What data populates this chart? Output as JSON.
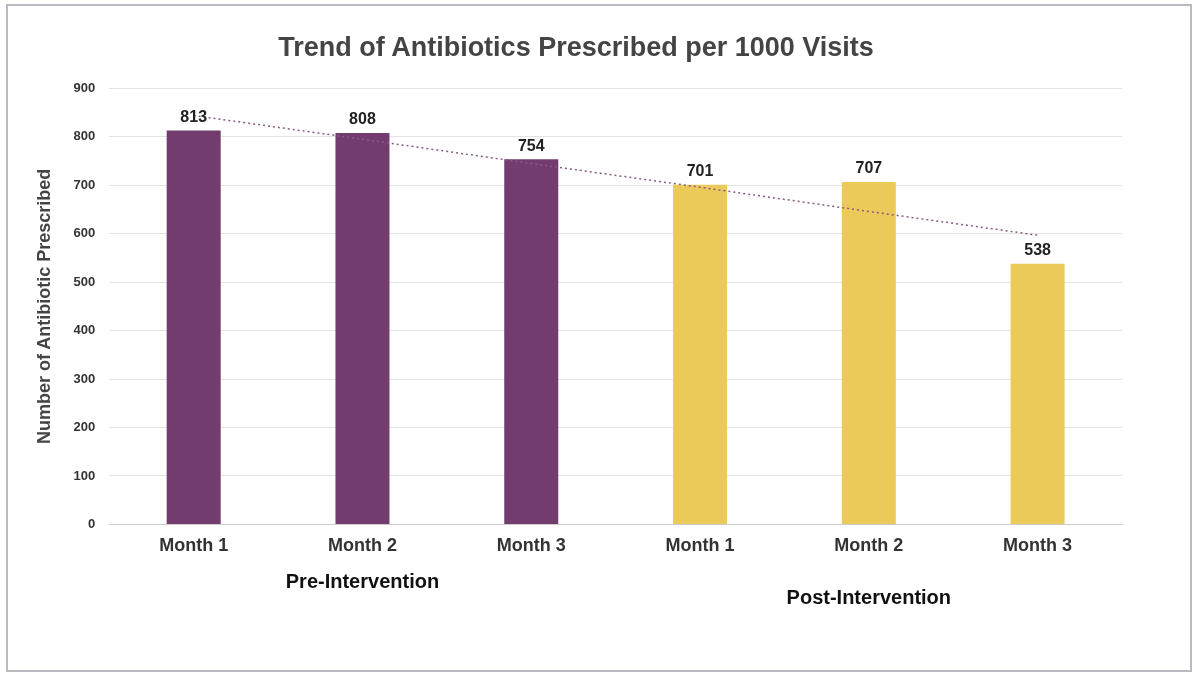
{
  "chart_data": {
    "type": "bar",
    "title": "Trend of Antibiotics Prescribed per 1000 Visits",
    "ylabel": "Number of Antibiotic Prescribed",
    "categories": [
      "Month 1",
      "Month 2",
      "Month 3",
      "Month 1",
      "Month 2",
      "Month 3"
    ],
    "series": [
      {
        "values": [
          813,
          808,
          754,
          701,
          707,
          538
        ],
        "colors": [
          "#733c6e",
          "#733c6e",
          "#733c6e",
          "#ecca5a",
          "#ecca5a",
          "#ecca5a"
        ],
        "value_labels": [
          "813",
          "808",
          "754",
          "701",
          "707",
          "538"
        ]
      },
      {
        "type": "line",
        "color": "#8a5a86",
        "values": [
          844,
          795,
          745,
          696,
          646,
          597
        ],
        "line_style": "dotted",
        "marker": "none"
      }
    ],
    "ylim": [
      0,
      900
    ],
    "yticks": [
      0,
      100,
      200,
      300,
      400,
      500,
      600,
      700,
      800,
      900
    ],
    "grid": "y",
    "legend": false,
    "annotations": [
      "Pre-Intervention",
      "Post-Intervention"
    ]
  }
}
